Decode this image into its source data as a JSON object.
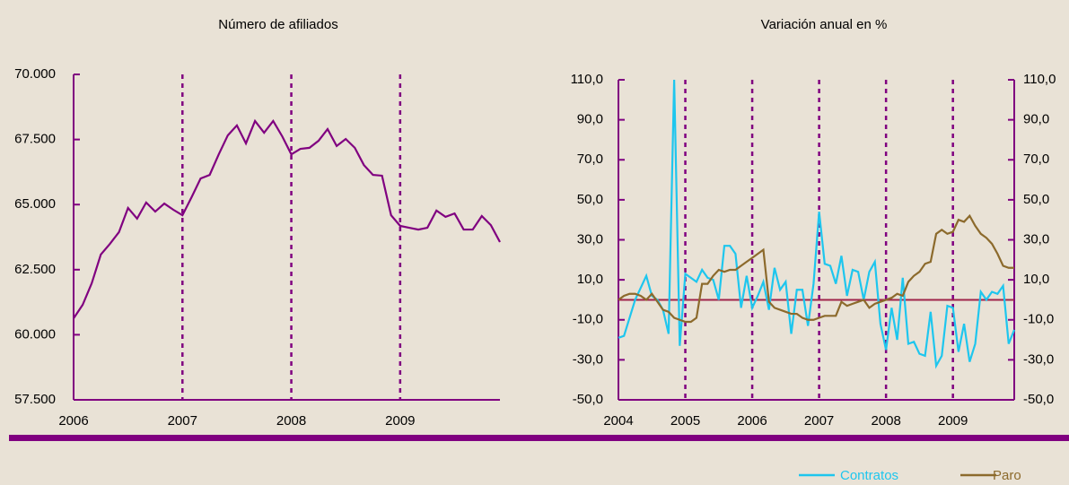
{
  "chart_data": [
    {
      "type": "line",
      "title": "Número de afiliados",
      "categories": [
        "2006",
        null,
        null,
        null,
        null,
        null,
        null,
        null,
        null,
        null,
        null,
        null,
        "2007",
        null,
        null,
        null,
        null,
        null,
        null,
        null,
        null,
        null,
        null,
        null,
        "2008",
        null,
        null,
        null,
        null,
        null,
        null,
        null,
        null,
        null,
        null,
        null,
        "2009",
        null,
        null,
        null,
        null,
        null,
        null,
        null,
        null,
        null,
        null,
        null
      ],
      "series": [
        {
          "name": "Afiliados",
          "color": "#800080",
          "values": [
            60630,
            61150,
            61980,
            63080,
            63490,
            63940,
            64870,
            64460,
            65080,
            64730,
            65040,
            64800,
            64590,
            65280,
            66000,
            66140,
            66930,
            67660,
            68040,
            67350,
            68210,
            67760,
            68210,
            67620,
            66930,
            67140,
            67180,
            67450,
            67900,
            67250,
            67520,
            67180,
            66520,
            66140,
            66110,
            64590,
            64180,
            64110,
            64040,
            64110,
            64770,
            64530,
            64660,
            64040,
            64040,
            64560,
            64210,
            63560
          ]
        }
      ],
      "ylim": [
        57500,
        70000
      ],
      "yticks": [
        {
          "value": 57500,
          "label": "57.500"
        },
        {
          "value": 60000,
          "label": "60.000"
        },
        {
          "value": 62500,
          "label": "62.500"
        },
        {
          "value": 65000,
          "label": "65.000"
        },
        {
          "value": 67500,
          "label": "67.500"
        },
        {
          "value": 70000,
          "label": "70.000"
        }
      ],
      "grid": false,
      "legend": false
    },
    {
      "type": "line",
      "title": "Variación anual en %",
      "categories": [
        "2004",
        null,
        null,
        null,
        null,
        null,
        null,
        null,
        null,
        null,
        null,
        null,
        "2005",
        null,
        null,
        null,
        null,
        null,
        null,
        null,
        null,
        null,
        null,
        null,
        "2006",
        null,
        null,
        null,
        null,
        null,
        null,
        null,
        null,
        null,
        null,
        null,
        "2007",
        null,
        null,
        null,
        null,
        null,
        null,
        null,
        null,
        null,
        null,
        null,
        "2008",
        null,
        null,
        null,
        null,
        null,
        null,
        null,
        null,
        null,
        null,
        null,
        "2009",
        null,
        null,
        null,
        null,
        null,
        null,
        null,
        null,
        null,
        null,
        null
      ],
      "series": [
        {
          "name": "Contratos",
          "color": "#1ec6ee",
          "values": [
            -19,
            -18,
            -9,
            0,
            6,
            12,
            2,
            0,
            -5,
            -17,
            110,
            -23,
            13,
            11,
            9,
            15,
            11,
            10,
            0,
            27,
            27,
            23,
            -4,
            12,
            -4,
            2,
            9,
            -5,
            16,
            5,
            9,
            -17,
            5,
            5,
            -13,
            8,
            44,
            18,
            17,
            8,
            22,
            2,
            15,
            14,
            0,
            14,
            19,
            -12,
            -25,
            -4,
            -20,
            11,
            -22,
            -21,
            -27,
            -28,
            -6,
            -33,
            -28,
            -3,
            -4,
            -26,
            -12,
            -31,
            -22,
            4,
            0,
            4,
            3,
            7,
            -22,
            -15
          ]
        },
        {
          "name": "Paro",
          "color": "#8c6a2c",
          "values": [
            0,
            2,
            3,
            3,
            2,
            0,
            3,
            -1,
            -5,
            -6,
            -9,
            -10,
            -11,
            -11,
            -9,
            8,
            8,
            12,
            15,
            14,
            15,
            15,
            17,
            19,
            21,
            23,
            25,
            -1,
            -4,
            -5,
            -6,
            -7,
            -7,
            -9,
            -10,
            -10,
            -9,
            -8,
            -8,
            -8,
            -1,
            -3,
            -2,
            -1,
            0,
            -4,
            -2,
            -1,
            0,
            1,
            3,
            2,
            9,
            12,
            14,
            18,
            19,
            33,
            35,
            33,
            34,
            40,
            39,
            42,
            37,
            33,
            31,
            28,
            23,
            17,
            16,
            16
          ]
        }
      ],
      "hline": 0,
      "ylim": [
        -50,
        110
      ],
      "yticks": [
        {
          "value": -50,
          "label": "-50,0"
        },
        {
          "value": -30,
          "label": "-30,0"
        },
        {
          "value": -10,
          "label": "-10,0"
        },
        {
          "value": 10,
          "label": "10,0"
        },
        {
          "value": 30,
          "label": "30,0"
        },
        {
          "value": 50,
          "label": "50,0"
        },
        {
          "value": 70,
          "label": "70,0"
        },
        {
          "value": 90,
          "label": "90,0"
        },
        {
          "value": 110,
          "label": "110,0"
        }
      ],
      "y2lim": [
        -50,
        110
      ],
      "y2ticks": [
        {
          "value": -50,
          "label": "-50,0"
        },
        {
          "value": -30,
          "label": "-30,0"
        },
        {
          "value": -10,
          "label": "-10,0"
        },
        {
          "value": 10,
          "label": "10,0"
        },
        {
          "value": 30,
          "label": "30,0"
        },
        {
          "value": 50,
          "label": "50,0"
        },
        {
          "value": 70,
          "label": "70,0"
        },
        {
          "value": 90,
          "label": "90,0"
        },
        {
          "value": 110,
          "label": "110,0"
        }
      ],
      "grid": false,
      "legend": "bottom-right"
    }
  ]
}
